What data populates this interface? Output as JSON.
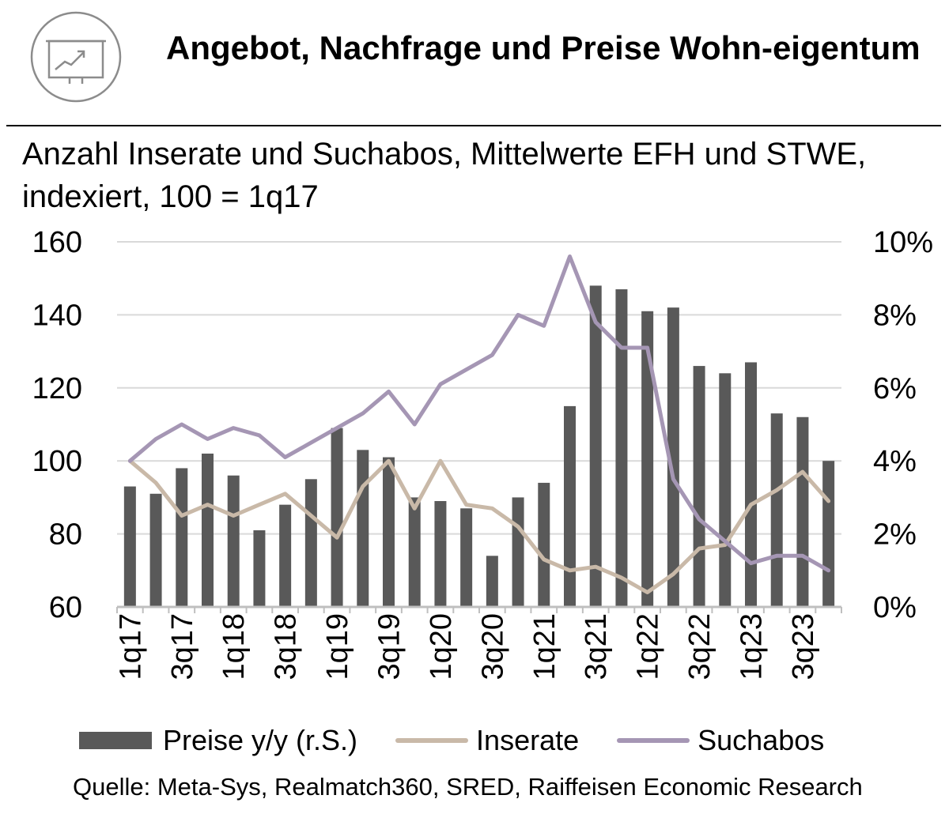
{
  "header": {
    "title": "Angebot, Nachfrage und Preise Wohn-eigentum",
    "icon": "presentation-chart-icon"
  },
  "subtitle": "Anzahl Inserate und Suchabos, Mittelwerte EFH und STWE, indexiert, 100 = 1q17",
  "source": "Quelle: Meta-Sys, Realmatch360, SRED, Raiffeisen Economic Research",
  "legend": {
    "preise": "Preise y/y (r.S.)",
    "inserate": "Inserate",
    "suchabos": "Suchabos"
  },
  "chart_data": {
    "type": "bar+line",
    "x": [
      "1q17",
      "2q17",
      "3q17",
      "4q17",
      "1q18",
      "2q18",
      "3q18",
      "4q18",
      "1q19",
      "2q19",
      "3q19",
      "4q19",
      "1q20",
      "2q20",
      "3q20",
      "4q20",
      "1q21",
      "2q21",
      "3q21",
      "4q21",
      "1q22",
      "2q22",
      "3q22",
      "4q22",
      "1q23",
      "2q23",
      "3q23",
      "4q23"
    ],
    "x_tick_labels": [
      "1q17",
      "3q17",
      "1q18",
      "3q18",
      "1q19",
      "3q19",
      "1q20",
      "3q20",
      "1q21",
      "3q21",
      "1q22",
      "3q22",
      "1q23",
      "3q23"
    ],
    "y_left": {
      "min": 60,
      "max": 160,
      "ticks": [
        60,
        80,
        100,
        120,
        140,
        160
      ]
    },
    "y_right": {
      "min": 0,
      "max": 10,
      "ticks": [
        "0%",
        "2%",
        "4%",
        "6%",
        "8%",
        "10%"
      ]
    },
    "grid": true,
    "legend_position": "bottom",
    "series": [
      {
        "name": "Preise y/y (r.S.)",
        "kind": "bar",
        "axis": "right",
        "color": "#595959",
        "values": [
          3.3,
          3.1,
          3.8,
          4.2,
          3.6,
          2.1,
          2.8,
          3.5,
          4.9,
          4.3,
          4.1,
          3.0,
          2.9,
          2.7,
          1.4,
          3.0,
          3.4,
          5.5,
          8.8,
          8.7,
          8.1,
          8.2,
          6.6,
          6.4,
          6.7,
          5.3,
          5.2,
          4.0
        ]
      },
      {
        "name": "Inserate",
        "kind": "line",
        "axis": "left",
        "color": "#c9b9a8",
        "values": [
          100,
          94,
          85,
          88,
          85,
          88,
          91,
          85,
          79,
          93,
          100,
          87,
          100,
          88,
          87,
          82,
          73,
          70,
          71,
          68,
          64,
          69,
          76,
          77,
          88,
          92,
          97,
          89
        ]
      },
      {
        "name": "Suchabos",
        "kind": "line",
        "axis": "left",
        "color": "#a596b4",
        "values": [
          100,
          106,
          110,
          106,
          109,
          107,
          101,
          105,
          109,
          113,
          119,
          110,
          121,
          125,
          129,
          140,
          137,
          156,
          138,
          131,
          131,
          95,
          84,
          78,
          72,
          74,
          74,
          70
        ]
      }
    ]
  }
}
